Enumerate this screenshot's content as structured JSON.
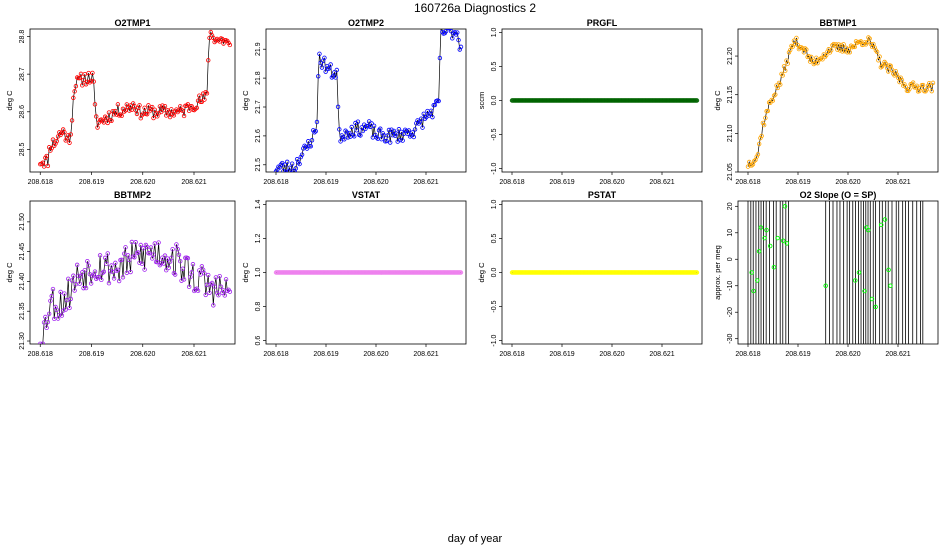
{
  "page": {
    "title": "160726a   Diagnostics 2",
    "xlabel": "day of year"
  },
  "colors": {
    "O2TMP1": "#ff0000",
    "O2TMP2": "#0000ff",
    "PRGFL": "#006400",
    "BBTMP1": "#ffa500",
    "BBTMP2": "#a020f0",
    "VSTAT": "#ee82ee",
    "PSTAT": "#ffff00",
    "O2SLOPE": "#00ff00",
    "line": "#000000"
  },
  "chart_data": [
    {
      "id": "O2TMP1",
      "type": "line",
      "title": "O2TMP1",
      "ylabel": "deg C",
      "xlim": [
        208.6178,
        208.6218
      ],
      "ylim": [
        28.44,
        28.82
      ],
      "xticks": [
        "208.618",
        "208.619",
        "208.620",
        "208.621"
      ],
      "xtick_values": [
        208.618,
        208.619,
        208.62,
        208.621
      ],
      "yticks": [
        "28.5",
        "28.6",
        "28.7",
        "28.8"
      ],
      "ytick_values": [
        28.5,
        28.6,
        28.7,
        28.8
      ],
      "series": [
        {
          "color_key": "O2TMP1",
          "x_start": 208.618,
          "x_end": 208.6217,
          "knots": [
            [
              0,
              28.47
            ],
            [
              0.04,
              28.47
            ],
            [
              0.05,
              28.51
            ],
            [
              0.08,
              28.52
            ],
            [
              0.1,
              28.54
            ],
            [
              0.13,
              28.55
            ],
            [
              0.14,
              28.52
            ],
            [
              0.16,
              28.54
            ],
            [
              0.18,
              28.67
            ],
            [
              0.23,
              28.69
            ],
            [
              0.28,
              28.69
            ],
            [
              0.29,
              28.59
            ],
            [
              0.3,
              28.57
            ],
            [
              0.4,
              28.6
            ],
            [
              0.5,
              28.62
            ],
            [
              0.52,
              28.6
            ],
            [
              0.55,
              28.6
            ],
            [
              0.75,
              28.6
            ],
            [
              0.8,
              28.62
            ],
            [
              0.85,
              28.63
            ],
            [
              0.88,
              28.64
            ],
            [
              0.89,
              28.81
            ],
            [
              0.94,
              28.79
            ],
            [
              0.98,
              28.79
            ],
            [
              1,
              28.77
            ]
          ],
          "jitter": 0.018,
          "seed": 11
        }
      ]
    },
    {
      "id": "O2TMP2",
      "type": "line",
      "title": "O2TMP2",
      "ylabel": "deg C",
      "xlim": [
        208.6178,
        208.6218
      ],
      "ylim": [
        21.475,
        21.97
      ],
      "xticks": [
        "208.618",
        "208.619",
        "208.620",
        "208.621"
      ],
      "xtick_values": [
        208.618,
        208.619,
        208.62,
        208.621
      ],
      "yticks": [
        "21.5",
        "21.6",
        "21.7",
        "21.8",
        "21.9"
      ],
      "ytick_values": [
        21.5,
        21.6,
        21.7,
        21.8,
        21.9
      ],
      "series": [
        {
          "color_key": "O2TMP2",
          "x_start": 208.618,
          "x_end": 208.6217,
          "knots": [
            [
              0,
              21.49
            ],
            [
              0.1,
              21.49
            ],
            [
              0.12,
              21.52
            ],
            [
              0.16,
              21.55
            ],
            [
              0.2,
              21.6
            ],
            [
              0.22,
              21.62
            ],
            [
              0.23,
              21.87
            ],
            [
              0.26,
              21.85
            ],
            [
              0.3,
              21.82
            ],
            [
              0.33,
              21.82
            ],
            [
              0.34,
              21.6
            ],
            [
              0.4,
              21.62
            ],
            [
              0.5,
              21.63
            ],
            [
              0.55,
              21.6
            ],
            [
              0.65,
              21.6
            ],
            [
              0.75,
              21.62
            ],
            [
              0.8,
              21.66
            ],
            [
              0.87,
              21.7
            ],
            [
              0.88,
              21.72
            ],
            [
              0.89,
              21.96
            ],
            [
              0.96,
              21.96
            ],
            [
              0.98,
              21.96
            ],
            [
              1,
              21.9
            ]
          ],
          "jitter": 0.025,
          "seed": 23
        }
      ]
    },
    {
      "id": "PRGFL",
      "type": "line",
      "title": "PRGFL",
      "ylabel": "sccm",
      "xlim": [
        208.6178,
        208.6218
      ],
      "ylim": [
        -1.05,
        1.05
      ],
      "xticks": [
        "208.618",
        "208.619",
        "208.620",
        "208.621"
      ],
      "xtick_values": [
        208.618,
        208.619,
        208.62,
        208.621
      ],
      "yticks": [
        "-1.0",
        "-0.5",
        "0.0",
        "0.5",
        "1.0"
      ],
      "ytick_values": [
        -1.0,
        -0.5,
        0.0,
        0.5,
        1.0
      ],
      "series": [
        {
          "color_key": "PRGFL",
          "x_start": 208.618,
          "x_end": 208.6217,
          "constant": 0,
          "dense": true
        }
      ]
    },
    {
      "id": "BBTMP1",
      "type": "line",
      "title": "BBTMP1",
      "ylabel": "deg C",
      "xlim": [
        208.6178,
        208.6218
      ],
      "ylim": [
        21.05,
        21.235
      ],
      "xticks": [
        "208.618",
        "208.619",
        "208.620",
        "208.621"
      ],
      "xtick_values": [
        208.618,
        208.619,
        208.62,
        208.621
      ],
      "yticks": [
        "21.05",
        "21.10",
        "21.15",
        "21.20"
      ],
      "ytick_values": [
        21.05,
        21.1,
        21.15,
        21.2
      ],
      "series": [
        {
          "color_key": "BBTMP1",
          "x_start": 208.618,
          "x_end": 208.6217,
          "knots": [
            [
              0,
              21.06
            ],
            [
              0.05,
              21.07
            ],
            [
              0.08,
              21.11
            ],
            [
              0.12,
              21.14
            ],
            [
              0.18,
              21.17
            ],
            [
              0.22,
              21.2
            ],
            [
              0.25,
              21.22
            ],
            [
              0.3,
              21.21
            ],
            [
              0.35,
              21.19
            ],
            [
              0.4,
              21.2
            ],
            [
              0.45,
              21.21
            ],
            [
              0.55,
              21.21
            ],
            [
              0.62,
              21.22
            ],
            [
              0.65,
              21.22
            ],
            [
              0.68,
              21.21
            ],
            [
              0.72,
              21.19
            ],
            [
              0.78,
              21.18
            ],
            [
              0.82,
              21.17
            ],
            [
              0.86,
              21.16
            ],
            [
              0.9,
              21.16
            ],
            [
              0.95,
              21.16
            ],
            [
              1,
              21.16
            ]
          ],
          "jitter": 0.006,
          "seed": 37
        }
      ]
    },
    {
      "id": "BBTMP2",
      "type": "line",
      "title": "BBTMP2",
      "ylabel": "deg C",
      "xlim": [
        208.6178,
        208.6218
      ],
      "ylim": [
        21.295,
        21.535
      ],
      "xticks": [
        "208.618",
        "208.619",
        "208.620",
        "208.621"
      ],
      "xtick_values": [
        208.618,
        208.619,
        208.62,
        208.621
      ],
      "yticks": [
        "21.30",
        "21.35",
        "21.40",
        "21.45",
        "21.50"
      ],
      "ytick_values": [
        21.3,
        21.35,
        21.4,
        21.45,
        21.5
      ],
      "series": [
        {
          "color_key": "BBTMP2",
          "x_start": 208.618,
          "x_end": 208.6217,
          "knots": [
            [
              0,
              21.31
            ],
            [
              0.03,
              21.33
            ],
            [
              0.05,
              21.37
            ],
            [
              0.1,
              21.36
            ],
            [
              0.15,
              21.38
            ],
            [
              0.2,
              21.41
            ],
            [
              0.3,
              21.43
            ],
            [
              0.4,
              21.42
            ],
            [
              0.5,
              21.44
            ],
            [
              0.6,
              21.45
            ],
            [
              0.7,
              21.44
            ],
            [
              0.8,
              21.41
            ],
            [
              0.9,
              21.39
            ],
            [
              1,
              21.38
            ]
          ],
          "jitter": 0.03,
          "seed": 53
        }
      ]
    },
    {
      "id": "VSTAT",
      "type": "line",
      "title": "VSTAT",
      "ylabel": "deg C",
      "xlim": [
        208.6178,
        208.6218
      ],
      "ylim": [
        0.58,
        1.42
      ],
      "xticks": [
        "208.618",
        "208.619",
        "208.620",
        "208.621"
      ],
      "xtick_values": [
        208.618,
        208.619,
        208.62,
        208.621
      ],
      "yticks": [
        "0.6",
        "0.8",
        "1.0",
        "1.2",
        "1.4"
      ],
      "ytick_values": [
        0.6,
        0.8,
        1.0,
        1.2,
        1.4
      ],
      "series": [
        {
          "color_key": "VSTAT",
          "x_start": 208.618,
          "x_end": 208.6217,
          "constant": 1.0,
          "dense": true
        }
      ]
    },
    {
      "id": "PSTAT",
      "type": "line",
      "title": "PSTAT",
      "ylabel": "deg C",
      "xlim": [
        208.6178,
        208.6218
      ],
      "ylim": [
        -1.05,
        1.05
      ],
      "xticks": [
        "208.618",
        "208.619",
        "208.620",
        "208.621"
      ],
      "xtick_values": [
        208.618,
        208.619,
        208.62,
        208.621
      ],
      "yticks": [
        "-1.0",
        "-0.5",
        "0.0",
        "0.5",
        "1.0"
      ],
      "ytick_values": [
        -1.0,
        -0.5,
        0.0,
        0.5,
        1.0
      ],
      "series": [
        {
          "color_key": "PSTAT",
          "x_start": 208.618,
          "x_end": 208.6217,
          "constant": 0,
          "dense": true
        }
      ]
    },
    {
      "id": "O2SLOPE",
      "type": "line",
      "title": "O2 Slope (O = SP)",
      "ylabel": "approx. per meg",
      "xlim": [
        208.6178,
        208.6218
      ],
      "ylim": [
        -32,
        22
      ],
      "xticks": [
        "208.618",
        "208.619",
        "208.620",
        "208.621"
      ],
      "xtick_values": [
        208.618,
        208.619,
        208.62,
        208.621
      ],
      "yticks": [
        "-30",
        "-20",
        "-10",
        "0",
        "10",
        "20"
      ],
      "ytick_values": [
        -30,
        -20,
        -10,
        0,
        10,
        20
      ],
      "series": [
        {
          "color_key": "O2SLOPE",
          "x_start": 208.618,
          "x_end": 208.6217,
          "spikes": true,
          "spike_segments": [
            [
              0.0,
              0.22
            ],
            [
              0.42,
              0.95
            ]
          ],
          "points": [
            [
              0.02,
              -5
            ],
            [
              0.03,
              -12
            ],
            [
              0.05,
              -8
            ],
            [
              0.06,
              3
            ],
            [
              0.07,
              12
            ],
            [
              0.09,
              8
            ],
            [
              0.1,
              11
            ],
            [
              0.12,
              5
            ],
            [
              0.14,
              -3
            ],
            [
              0.16,
              8
            ],
            [
              0.19,
              7
            ],
            [
              0.2,
              20
            ],
            [
              0.21,
              6
            ],
            [
              0.42,
              -10
            ],
            [
              0.58,
              -8
            ],
            [
              0.6,
              -5
            ],
            [
              0.63,
              -12
            ],
            [
              0.64,
              12
            ],
            [
              0.65,
              11
            ],
            [
              0.67,
              -15
            ],
            [
              0.69,
              -18
            ],
            [
              0.72,
              13
            ],
            [
              0.74,
              15
            ],
            [
              0.76,
              -4
            ],
            [
              0.77,
              -10
            ]
          ]
        }
      ]
    }
  ]
}
